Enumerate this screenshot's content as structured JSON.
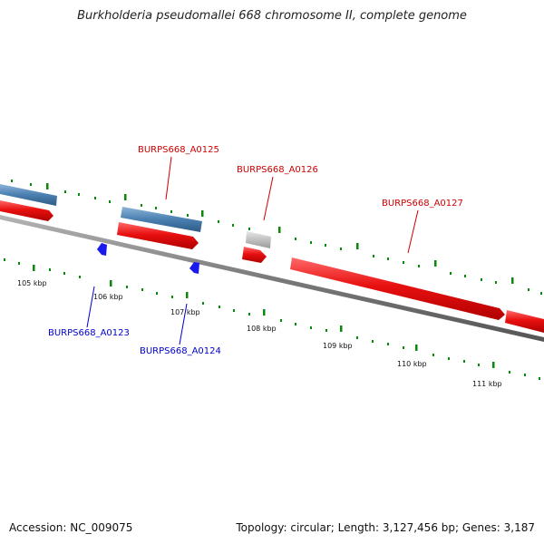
{
  "title": "Burkholderia pseudomallei 668 chromosome II, complete genome",
  "footer": {
    "accession": "Accession: NC_009075",
    "summary": "Topology: circular; Length: 3,127,456 bp; Genes: 3,187"
  },
  "ticks": [
    "105 kbp",
    "106 kbp",
    "107 kbp",
    "108 kbp",
    "109 kbp",
    "110 kbp",
    "111 kbp"
  ],
  "genes": {
    "a0123": "BURPS668_A0123",
    "a0124": "BURPS668_A0124",
    "a0125": "BURPS668_A0125",
    "a0126": "BURPS668_A0126",
    "a0127": "BURPS668_A0127"
  },
  "colors": {
    "forward_cds": "#e81010",
    "reverse_cds": "#1a1aee",
    "steelblue_feature": "#4a7fb0",
    "grey_feature": "#bdbdbd",
    "tick_green": "#0a8a0a",
    "backbone": "#7a7a7a",
    "label_red": "#cc0000",
    "label_blue": "#0000cc"
  }
}
